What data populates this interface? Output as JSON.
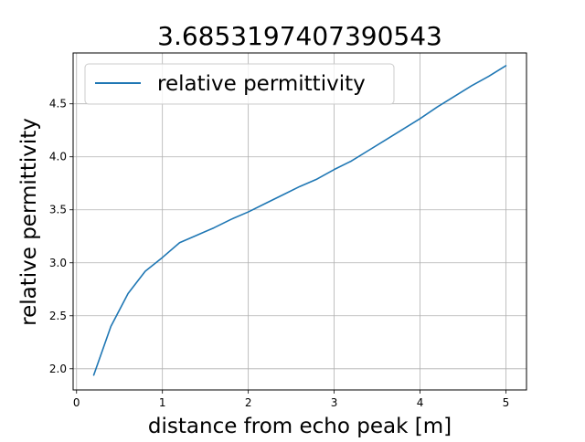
{
  "chart_data": {
    "type": "line",
    "title": "3.6853197407390543",
    "xlabel": "distance from echo peak [m]",
    "ylabel": "relative permittivity",
    "xlim": [
      -0.04,
      5.24
    ],
    "ylim": [
      1.8,
      4.98
    ],
    "xticks": [
      0,
      1,
      2,
      3,
      4,
      5
    ],
    "xtick_labels": [
      "0",
      "1",
      "2",
      "3",
      "4",
      "5"
    ],
    "yticks": [
      2.0,
      2.5,
      3.0,
      3.5,
      4.0,
      4.5
    ],
    "ytick_labels": [
      "2.0",
      "2.5",
      "3.0",
      "3.5",
      "4.0",
      "4.5"
    ],
    "grid": true,
    "legend_position": "upper left",
    "colors": {
      "line": "#1f77b4",
      "grid": "#b0b0b0",
      "axis": "#000000",
      "legend_border": "#cccccc"
    },
    "series": [
      {
        "name": "relative permittivity",
        "x": [
          0.2,
          0.4,
          0.6,
          0.8,
          1.0,
          1.2,
          1.4,
          1.6,
          1.8,
          2.0,
          2.2,
          2.4,
          2.6,
          2.8,
          3.0,
          3.2,
          3.4,
          3.6,
          3.8,
          4.0,
          4.2,
          4.4,
          4.6,
          4.8,
          5.0
        ],
        "values": [
          1.94,
          2.4,
          2.71,
          2.92,
          3.05,
          3.19,
          3.26,
          3.33,
          3.41,
          3.48,
          3.56,
          3.64,
          3.72,
          3.79,
          3.88,
          3.96,
          4.06,
          4.16,
          4.26,
          4.36,
          4.47,
          4.57,
          4.67,
          4.76,
          4.86
        ]
      }
    ]
  }
}
